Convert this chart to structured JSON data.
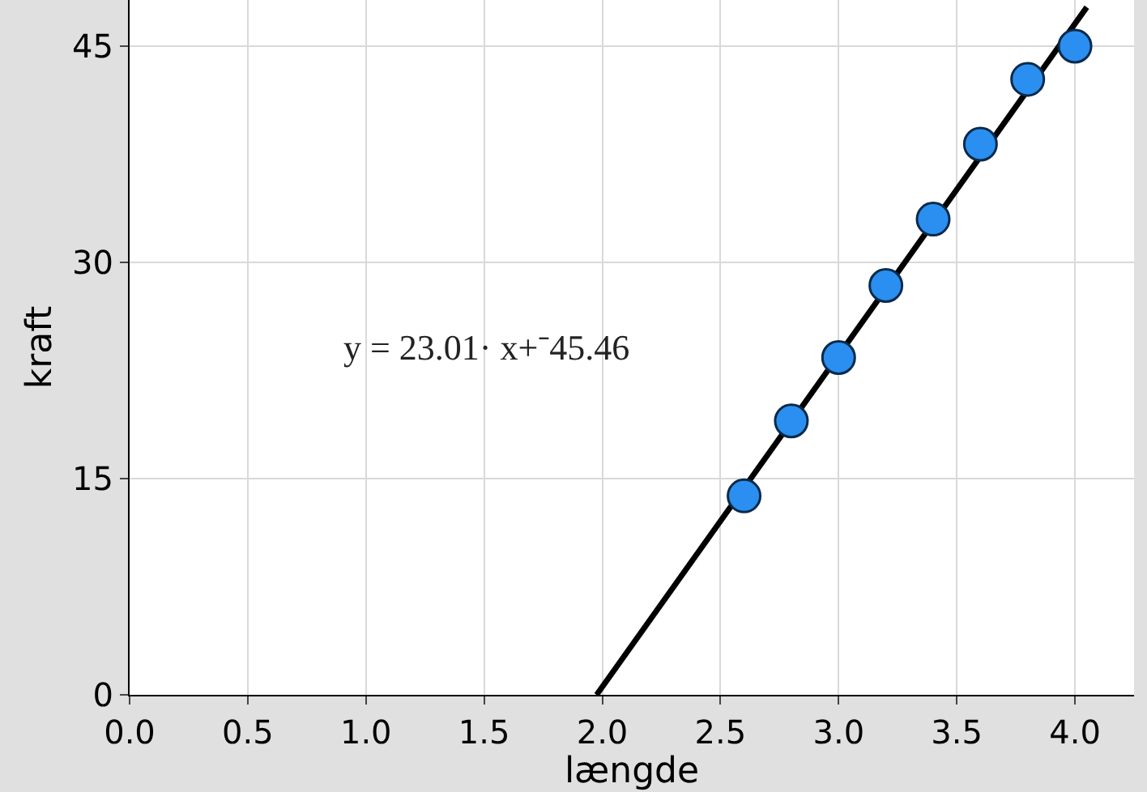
{
  "chart_data": {
    "type": "scatter",
    "xlabel": "længde",
    "ylabel": "kraft",
    "annotations": [
      "y = 23.01· x+⁻45.46"
    ],
    "xlim": [
      0,
      4.25
    ],
    "ylim": [
      0,
      48.2
    ],
    "xticks": [
      {
        "value": 0,
        "label": "0.0"
      },
      {
        "value": 0.5,
        "label": "0.5"
      },
      {
        "value": 1,
        "label": "1.0"
      },
      {
        "value": 1.5,
        "label": "1.5"
      },
      {
        "value": 2,
        "label": "2.0"
      },
      {
        "value": 2.5,
        "label": "2.5"
      },
      {
        "value": 3,
        "label": "3.0"
      },
      {
        "value": 3.5,
        "label": "3.5"
      },
      {
        "value": 4,
        "label": "4.0"
      }
    ],
    "yticks": [
      0,
      15,
      30,
      45
    ],
    "grid": true,
    "series": [
      {
        "marker": "circle",
        "color": "#2a8ff0",
        "x": [
          2.6,
          2.8,
          3.0,
          3.2,
          3.4,
          3.6,
          3.8,
          4.0
        ],
        "values": [
          13.8,
          19.0,
          23.4,
          28.4,
          33.0,
          38.2,
          42.7,
          45.0
        ]
      },
      {
        "type": "line",
        "color": "#000000",
        "x": [
          1.976,
          4.05
        ],
        "values": [
          0.0,
          47.7
        ],
        "marker": "none"
      }
    ]
  }
}
